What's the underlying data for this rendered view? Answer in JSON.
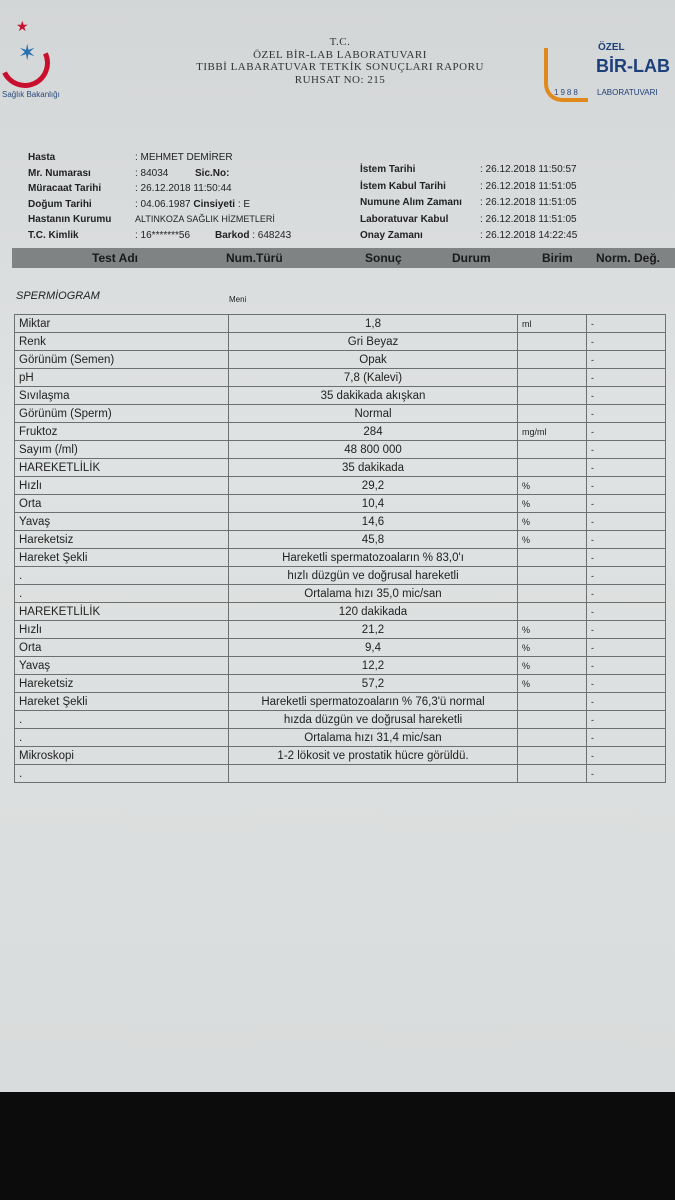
{
  "header": {
    "lines": [
      "T.C.",
      "ÖZEL BİR-LAB LABORATUVARI",
      "TIBBİ LABARATUVAR TETKİK SONUÇLARI RAPORU",
      "RUHSAT NO: 215"
    ],
    "left_logo_text": "Sağlık Bakanlığı",
    "right_logo": {
      "ozel": "ÖZEL",
      "name": "BİR-LAB",
      "sub": "LABORATUVARI",
      "year": "1988"
    }
  },
  "patient": {
    "hasta_label": "Hasta",
    "hasta": ": MEHMET DEMİRER",
    "mr_label": "Mr. Numarası",
    "mr": ": 84034",
    "sic_label": "Sic.No:",
    "muracaat_label": "Müracaat Tarihi",
    "muracaat": ": 26.12.2018 11:50:44",
    "dogum_label": "Doğum Tarihi",
    "dogum": ": 04.06.1987",
    "cinsiyet_label": "Cinsiyeti",
    "cinsiyet": ": E",
    "kurum_label": "Hastanın Kurumu",
    "kurum": "ALTINKOZA SAĞLIK HİZMETLERİ",
    "tc_label": "T.C. Kimlik",
    "tc": ": 16*******56",
    "barkod_label": "Barkod",
    "barkod": ": 648243"
  },
  "dates": {
    "istem_label": "İstem Tarihi",
    "istem": ": 26.12.2018 11:50:57",
    "kabul_label": "İstem Kabul Tarihi",
    "kabul": ": 26.12.2018 11:51:05",
    "numune_label": "Numune Alım Zamanı",
    "numune": ": 26.12.2018 11:51:05",
    "lab_label": "Laboratuvar Kabul",
    "lab": ": 26.12.2018 11:51:05",
    "onay_label": "Onay Zamanı",
    "onay": ": 26.12.2018 14:22:45"
  },
  "columns": [
    "Test Adı",
    "Num.Türü",
    "Sonuç",
    "Durum",
    "Birim",
    "Norm. Değ."
  ],
  "section": "SPERMİOGRAM",
  "sample_type": "Meni",
  "rows": [
    {
      "name": "Miktar",
      "result": "1,8",
      "unit": "ml",
      "norm": "-"
    },
    {
      "name": "Renk",
      "result": "Gri Beyaz",
      "unit": "",
      "norm": "-"
    },
    {
      "name": "Görünüm (Semen)",
      "result": "Opak",
      "unit": "",
      "norm": "-"
    },
    {
      "name": "pH",
      "result": "7,8 (Kalevi)",
      "unit": "",
      "norm": "-"
    },
    {
      "name": "Sıvılaşma",
      "result": "35  dakikada akışkan",
      "unit": "",
      "norm": "-"
    },
    {
      "name": "Görünüm (Sperm)",
      "result": "Normal",
      "unit": "",
      "norm": "-"
    },
    {
      "name": "Fruktoz",
      "result": "284",
      "unit": "mg/ml",
      "norm": "-"
    },
    {
      "name": "Sayım (/ml)",
      "result": "48 800 000",
      "unit": "",
      "norm": "-"
    },
    {
      "name": "HAREKETLİLİK",
      "result": "35 dakikada",
      "unit": "",
      "norm": "-"
    },
    {
      "name": "Hızlı",
      "result": "29,2",
      "unit": "%",
      "norm": "-"
    },
    {
      "name": "Orta",
      "result": "10,4",
      "unit": "%",
      "norm": "-"
    },
    {
      "name": "Yavaş",
      "result": "14,6",
      "unit": "%",
      "norm": "-"
    },
    {
      "name": "Hareketsiz",
      "result": "45,8",
      "unit": "%",
      "norm": "-"
    },
    {
      "name": "Hareket Şekli",
      "result": "Hareketli spermatozoaların % 83,0'ı",
      "unit": "",
      "norm": "-"
    },
    {
      "name": ".",
      "result": "hızlı düzgün ve doğrusal hareketli",
      "unit": "",
      "norm": "-"
    },
    {
      "name": ".",
      "result": "Ortalama hızı   35,0   mic/san",
      "unit": "",
      "norm": "-"
    },
    {
      "name": "HAREKETLİLİK",
      "result": "120  dakikada",
      "unit": "",
      "norm": "-"
    },
    {
      "name": "Hızlı",
      "result": "21,2",
      "unit": "%",
      "norm": "-"
    },
    {
      "name": "Orta",
      "result": "9,4",
      "unit": "%",
      "norm": "-"
    },
    {
      "name": "Yavaş",
      "result": "12,2",
      "unit": "%",
      "norm": "-"
    },
    {
      "name": "Hareketsiz",
      "result": "57,2",
      "unit": "%",
      "norm": "-"
    },
    {
      "name": "Hareket Şekli",
      "result": "Hareketli spermatozoaların % 76,3'ü normal",
      "unit": "",
      "norm": "-"
    },
    {
      "name": ".",
      "result": "hızda düzgün ve doğrusal hareketli",
      "unit": "",
      "norm": "-"
    },
    {
      "name": ".",
      "result": "Ortalama hızı   31,4   mic/san",
      "unit": "",
      "norm": "-"
    },
    {
      "name": "Mikroskopi",
      "result": "1-2 lökosit ve prostatik hücre görüldü.",
      "unit": "",
      "norm": "-"
    },
    {
      "name": ".",
      "result": "",
      "unit": "",
      "norm": "-"
    }
  ]
}
